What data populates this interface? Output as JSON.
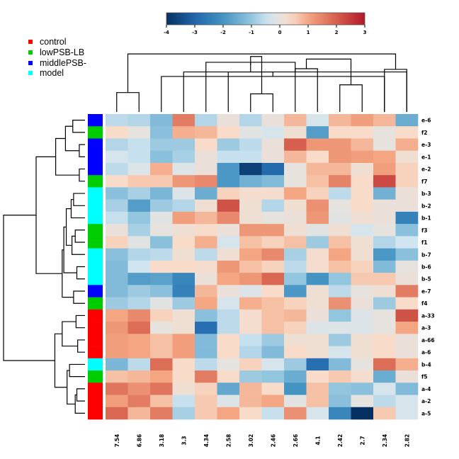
{
  "chart_data": {
    "type": "heatmap",
    "title": "",
    "colorbar": {
      "min": -4,
      "max": 3,
      "ticks": [
        "-4",
        "-3",
        "-2",
        "-1",
        "0",
        "1",
        "2",
        "3"
      ],
      "low_color": "#053061",
      "mid_color": "#f7f7f7",
      "high_color": "#b2182b"
    },
    "legend": {
      "placement": "top-left",
      "entries": [
        {
          "label": "control",
          "color": "#ff0000"
        },
        {
          "label": "lowPSB-LB",
          "color": "#00cd00"
        },
        {
          "label": "middlePSB-",
          "color": "#0000ff"
        },
        {
          "label": "model",
          "color": "#00ffff"
        }
      ]
    },
    "columns": [
      "7.54",
      "6.86",
      "3.18",
      "3.3",
      "4.34",
      "2.58",
      "3.02",
      "2.46",
      "2.66",
      "4.1",
      "2.42",
      "2.7",
      "2.34",
      "2.82"
    ],
    "rows": [
      {
        "label": "e-6",
        "group": "middlePSB-",
        "values": [
          -0.6,
          -0.7,
          -1.2,
          1.6,
          -0.7,
          0.1,
          -0.7,
          0.1,
          0.8,
          -0.3,
          0.8,
          1.1,
          0.8,
          -1.5
        ]
      },
      {
        "label": "f2",
        "group": "lowPSB-LB",
        "values": [
          0.4,
          0.0,
          -1.1,
          0.9,
          0.8,
          0.4,
          -0.1,
          -0.3,
          0.2,
          -1.8,
          0.4,
          0.4,
          0.0,
          0.4
        ]
      },
      {
        "label": "e-3",
        "group": "middlePSB-",
        "values": [
          -0.7,
          -0.5,
          -0.9,
          -0.9,
          0.4,
          -0.9,
          -0.6,
          0.1,
          2.0,
          1.2,
          1.2,
          0.8,
          0.0,
          0.9
        ]
      },
      {
        "label": "e-1",
        "group": "middlePSB-",
        "values": [
          -0.3,
          -0.5,
          -1.1,
          -0.8,
          0.1,
          -0.5,
          -0.5,
          0.1,
          0.8,
          0.4,
          1.2,
          1.1,
          1.0,
          0.2
        ]
      },
      {
        "label": "e-2",
        "group": "middlePSB-",
        "values": [
          -0.6,
          -0.2,
          0.9,
          -0.2,
          0.1,
          -1.9,
          -3.7,
          -2.9,
          0.0,
          0.8,
          0.8,
          0.2,
          1.1,
          0.5
        ]
      },
      {
        "label": "f7",
        "group": "lowPSB-LB",
        "values": [
          0.4,
          0.6,
          0.6,
          1.2,
          1.4,
          -1.9,
          -1.4,
          -1.2,
          0.0,
          0.7,
          1.5,
          0.4,
          2.3,
          0.5
        ]
      },
      {
        "label": "b-3",
        "group": "model",
        "values": [
          -1.1,
          -0.8,
          -1.3,
          -0.2,
          -1.5,
          0.5,
          0.3,
          0.3,
          1.0,
          0.5,
          -0.6,
          0.4,
          -1.4,
          0.1
        ]
      },
      {
        "label": "b-2",
        "group": "model",
        "values": [
          -0.8,
          -1.8,
          -0.9,
          -0.7,
          0.2,
          2.2,
          0.2,
          -0.7,
          0.2,
          1.3,
          0.0,
          0.4,
          0.1,
          0.1
        ]
      },
      {
        "label": "b-1",
        "group": "model",
        "values": [
          -0.5,
          -1.0,
          -0.1,
          1.1,
          0.8,
          1.4,
          0.2,
          0.0,
          0.1,
          1.2,
          -0.1,
          0.2,
          0.1,
          -2.4
        ]
      },
      {
        "label": "f3",
        "group": "lowPSB-LB",
        "values": [
          0.1,
          -0.8,
          0.0,
          0.2,
          0.4,
          0.1,
          1.2,
          1.2,
          0.2,
          -0.1,
          0.2,
          -0.3,
          0.0,
          -1.1
        ]
      },
      {
        "label": "f1",
        "group": "lowPSB-LB",
        "values": [
          0.5,
          -0.1,
          -1.1,
          0.4,
          0.9,
          -0.3,
          0.7,
          0.5,
          0.7,
          -0.9,
          0.7,
          0.2,
          -0.7,
          -0.4
        ]
      },
      {
        "label": "b-7",
        "group": "model",
        "values": [
          -1.1,
          -0.7,
          -0.6,
          0.2,
          -0.6,
          0.2,
          1.0,
          1.4,
          -0.8,
          0.3,
          1.0,
          0.2,
          -1.9,
          -1.1
        ]
      },
      {
        "label": "b-6",
        "group": "model",
        "values": [
          -1.2,
          -0.4,
          0.4,
          0.4,
          0.3,
          1.2,
          0.7,
          0.5,
          -0.6,
          0.3,
          0.7,
          0.5,
          -1.2,
          0.0
        ]
      },
      {
        "label": "b-5",
        "group": "model",
        "values": [
          -1.2,
          -1.8,
          -1.7,
          -2.3,
          0.1,
          1.0,
          1.2,
          1.9,
          -1.0,
          -2.0,
          -1.0,
          0.6,
          0.6,
          0.1
        ]
      },
      {
        "label": "e-7",
        "group": "middlePSB-",
        "values": [
          -1.2,
          -0.9,
          -1.1,
          -2.4,
          0.8,
          0.1,
          -0.2,
          0.4,
          -1.9,
          0.2,
          -0.6,
          0.0,
          0.2,
          1.6
        ]
      },
      {
        "label": "f4",
        "group": "lowPSB-LB",
        "values": [
          -0.9,
          -0.7,
          -0.1,
          -0.9,
          1.0,
          -0.3,
          0.9,
          0.7,
          0.5,
          0.2,
          1.3,
          0.1,
          -0.9,
          0.4
        ]
      },
      {
        "label": "a-33",
        "group": "control",
        "values": [
          1.0,
          1.4,
          0.5,
          0.2,
          -1.1,
          -0.6,
          0.3,
          0.7,
          0.8,
          0.1,
          -1.0,
          -0.2,
          0.0,
          2.2
        ]
      },
      {
        "label": "a-3",
        "group": "control",
        "values": [
          1.2,
          1.8,
          0.0,
          0.2,
          -2.8,
          -0.6,
          0.3,
          0.7,
          0.5,
          -0.2,
          -0.2,
          -0.2,
          0.0,
          1.0
        ]
      },
      {
        "label": "a-66",
        "group": "control",
        "values": [
          1.1,
          1.0,
          0.7,
          1.1,
          -1.2,
          0.4,
          -0.5,
          -0.9,
          0.2,
          0.2,
          -0.9,
          0.2,
          0.4,
          0.1
        ]
      },
      {
        "label": "a-6",
        "group": "control",
        "values": [
          1.1,
          1.0,
          0.7,
          1.1,
          -1.2,
          0.4,
          -0.7,
          -1.2,
          0.4,
          0.2,
          -0.3,
          0.2,
          0.4,
          0.1
        ]
      },
      {
        "label": "b-4",
        "group": "model",
        "values": [
          -1.3,
          -0.6,
          1.8,
          0.4,
          -0.6,
          0.0,
          0.5,
          -0.3,
          -0.9,
          -2.8,
          -1.2,
          0.0,
          1.8,
          0.9
        ]
      },
      {
        "label": "f5",
        "group": "lowPSB-LB",
        "values": [
          0.7,
          0.8,
          1.0,
          0.4,
          1.6,
          0.4,
          -0.9,
          -1.0,
          -1.5,
          0.4,
          0.6,
          0.3,
          -1.5,
          0.1
        ]
      },
      {
        "label": "a-4",
        "group": "control",
        "values": [
          1.7,
          1.3,
          1.7,
          0.2,
          0.5,
          -1.6,
          0.8,
          0.4,
          -2.0,
          0.7,
          -1.0,
          -1.1,
          -0.3,
          -1.2
        ]
      },
      {
        "label": "a-2",
        "group": "control",
        "values": [
          1.1,
          1.6,
          0.7,
          -0.5,
          0.6,
          -0.2,
          0.8,
          1.0,
          -0.1,
          0.7,
          -1.1,
          0.0,
          -0.6,
          -0.3
        ]
      },
      {
        "label": "a-5",
        "group": "control",
        "values": [
          1.9,
          0.8,
          1.6,
          -0.8,
          0.6,
          1.0,
          0.4,
          -0.5,
          1.3,
          -0.3,
          -2.3,
          -4.0,
          0.6,
          -0.3
        ]
      }
    ],
    "col_dendrogram": [
      [
        0,
        1,
        0.3
      ],
      [
        12,
        2,
        0.55
      ],
      [
        13,
        3,
        0.62
      ],
      [
        6,
        7,
        0.28
      ],
      [
        5,
        15,
        0.62
      ],
      [
        4,
        16,
        0.77
      ],
      [
        8,
        9,
        0.67
      ],
      [
        10,
        11,
        0.42
      ],
      [
        18,
        19,
        0.73
      ],
      [
        12,
        13,
        0.66
      ],
      [
        20,
        21,
        0.82
      ],
      [
        17,
        22,
        0.86
      ],
      [
        14,
        23,
        0.9
      ]
    ],
    "row_dendrogram": [
      [
        0,
        1,
        0.15
      ],
      [
        2,
        3,
        0.07
      ],
      [
        25,
        26,
        0.24
      ],
      [
        4,
        5,
        0.07
      ],
      [
        27,
        28,
        0.36
      ],
      [
        6,
        7,
        0.14
      ],
      [
        30,
        8,
        0.17
      ],
      [
        9,
        10,
        0.12
      ],
      [
        32,
        11,
        0.16
      ],
      [
        31,
        33,
        0.23
      ],
      [
        12,
        13,
        0.1
      ],
      [
        34,
        35,
        0.26
      ],
      [
        14,
        15,
        0.14
      ],
      [
        36,
        37,
        0.28
      ],
      [
        29,
        38,
        0.6
      ],
      [
        16,
        17,
        0.11
      ],
      [
        18,
        19,
        0.09
      ],
      [
        40,
        41,
        0.28
      ],
      [
        20,
        21,
        0.19
      ],
      [
        22,
        23,
        0.1
      ],
      [
        44,
        24,
        0.12
      ],
      [
        43,
        45,
        0.22
      ],
      [
        42,
        46,
        0.37
      ],
      [
        39,
        47,
        1.0
      ]
    ]
  }
}
